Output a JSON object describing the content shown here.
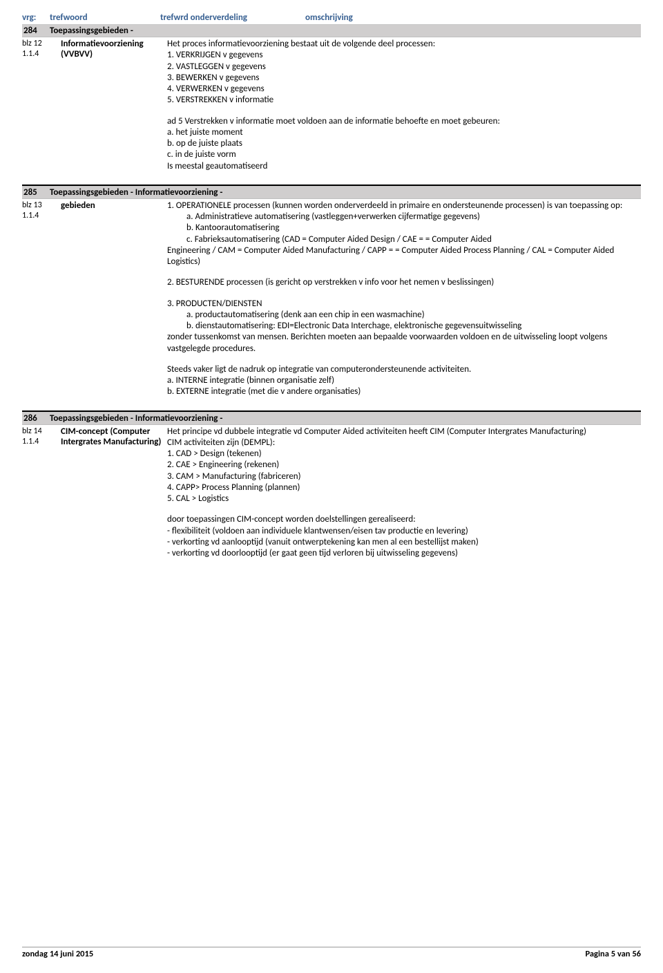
{
  "header": {
    "vrg": "vrg:",
    "trefwoord": "trefwoord",
    "onderverdeling": "trefwrd onderverdeling",
    "omschrijving": "omschrijving"
  },
  "sections": [
    {
      "num": "284",
      "title": "Toepassingsgebieden -",
      "blz": "blz 12",
      "sub": "1.1.4",
      "keyword": "Informatievoorziening (VVBVV)",
      "desc_main": [
        "Het proces informatievoorziening bestaat uit de volgende deel processen:",
        "1. VERKRIJGEN v gegevens",
        "2. VASTLEGGEN v gegevens",
        "3. BEWERKEN v gegevens",
        "4. VERWERKEN v gegevens",
        "5. VERSTREKKEN v informatie"
      ],
      "desc_block2": [
        "ad 5 Verstrekken v informatie moet voldoen aan de informatie behoefte en moet gebeuren:",
        "a. het juiste moment",
        "b. op de juiste plaats",
        "c. in de juiste vorm",
        "Is meestal geautomatiseerd"
      ]
    },
    {
      "num": "285",
      "title": "Toepassingsgebieden - Informatievoorziening -",
      "blz": "blz 13",
      "sub": "1.1.4",
      "keyword": "gebieden",
      "desc_lines": [
        "1. OPERATIONELE processen (kunnen worden onderverdeeld in primaire en ondersteunende processen) is van toepassing op:"
      ],
      "desc_indent1": [
        "a. Administratieve automatisering (vastleggen+verwerken cijfermatige gegevens)",
        "b. Kantoorautomatisering",
        "c. Fabrieksautomatisering  (CAD = Computer Aided Design / CAE =  = Computer Aided"
      ],
      "desc_after_indent1": [
        "Engineering / CAM = Computer Aided Manufacturing / CAPP =  = Computer Aided Process Planning / CAL = Computer Aided Logistics)"
      ],
      "desc_block2": [
        "2. BESTURENDE processen (is gericht op verstrekken v info voor het nemen v beslissingen)"
      ],
      "desc_block3_head": "3. PRODUCTEN/DIENSTEN",
      "desc_block3_indent": [
        "a. productautomatisering (denk aan een chip in een wasmachine)",
        "b. dienstautomatisering: EDI=Electronic Data Interchage, elektronische gegevensuitwisseling"
      ],
      "desc_block3_tail": [
        "zonder tussenkomst van mensen. Berichten moeten aan bepaalde voorwaarden voldoen en de uitwisseling loopt volgens vastgelegde procedures."
      ],
      "desc_block4": [
        "Steeds vaker ligt de nadruk op integratie van computerondersteunende activiteiten.",
        "a. INTERNE integratie (binnen organisatie zelf)",
        "b. EXTERNE integratie (met die v andere organisaties)"
      ]
    },
    {
      "num": "286",
      "title": "Toepassingsgebieden - Informatievoorziening -",
      "blz": "blz 14",
      "sub": "1.1.4",
      "keyword": "CIM-concept (Computer Intergrates Manufacturing)",
      "desc_main": [
        "Het principe vd  dubbele integratie vd Computer Aided activiteiten heeft CIM (Computer Intergrates Manufacturing)",
        "CIM activiteiten zijn (DEMPL):",
        "1. CAD > Design (tekenen)",
        "2. CAE > Engineering (rekenen)",
        "3. CAM > Manufacturing (fabriceren)",
        "4. CAPP> Process Planning (plannen)",
        "5. CAL > Logistics"
      ],
      "desc_block2": [
        "door toepassingen CIM-concept worden doelstellingen gerealiseerd:",
        "- flexibiliteit (voldoen aan individuele klantwensen/eisen tav productie en levering)",
        "- verkorting vd aanlooptijd (vanuit ontwerptekening kan men al een bestellijst maken)",
        "- verkorting vd doorlooptijd (er gaat geen tijd verloren bij uitwisseling gegevens)"
      ]
    }
  ],
  "footer": {
    "left": "zondag 14 juni 2015",
    "right": "Pagina 5 van 56"
  }
}
